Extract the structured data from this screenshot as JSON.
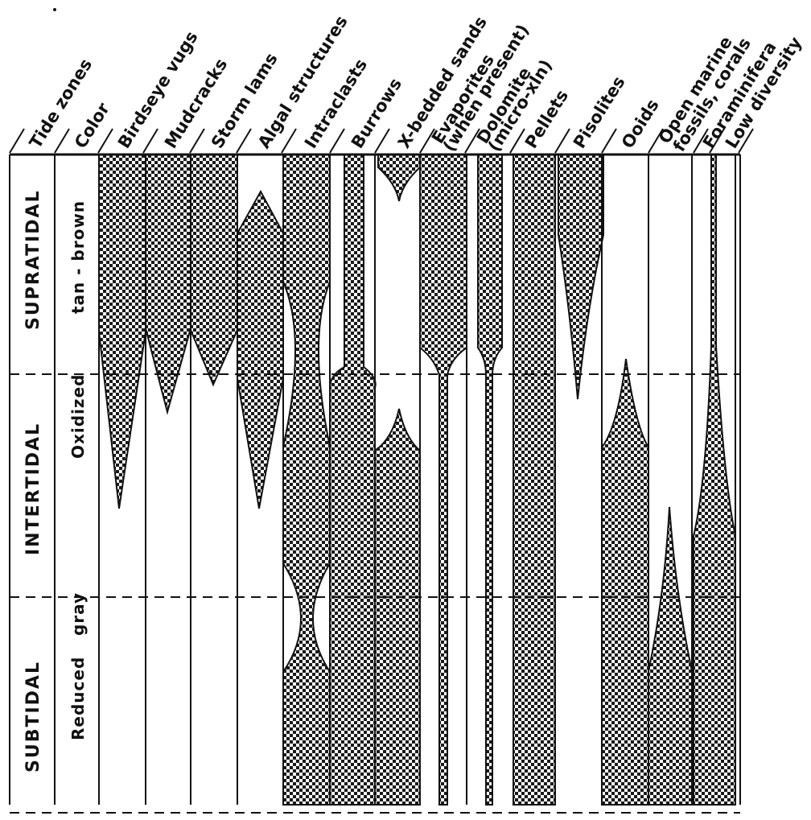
{
  "columns": [
    {
      "id": "tide_zones",
      "line1": "Tide zones"
    },
    {
      "id": "color",
      "line1": "Color"
    },
    {
      "id": "birdseye_vugs",
      "line1": "Birdseye vugs"
    },
    {
      "id": "mudcracks",
      "line1": "Mudcracks"
    },
    {
      "id": "storm_lams",
      "line1": "Storm lams"
    },
    {
      "id": "algal_structures",
      "line1": "Algal structures"
    },
    {
      "id": "intraclasts",
      "line1": "Intraclasts"
    },
    {
      "id": "burrows",
      "line1": "Burrows"
    },
    {
      "id": "x_bedded_sands",
      "line1": "X-bedded sands"
    },
    {
      "id": "evaporites",
      "line1": "Evaporites",
      "line2": "(when present)"
    },
    {
      "id": "dolomite",
      "line1": "Dolomite",
      "line2": "(micro-xln)"
    },
    {
      "id": "pellets",
      "line1": "Pellets"
    },
    {
      "id": "pisolites",
      "line1": "Pisolites"
    },
    {
      "id": "ooids",
      "line1": "Ooids"
    },
    {
      "id": "open_marine",
      "line1": "Open marine",
      "line2": "fossils, corals"
    },
    {
      "id": "foraminifera",
      "line1": "Foraminifera"
    },
    {
      "id": "low_diversity",
      "line1": "Low diversity"
    }
  ],
  "zones": {
    "supratidal": "SUPRATIDAL",
    "intertidal": "INTERTIDAL",
    "subtidal": "SUBTIDAL"
  },
  "colors": {
    "oxidized": "Oxidized",
    "tan_brown": "tan - brown",
    "reduced": "Reduced",
    "gray": "gray"
  },
  "style": {
    "fill_pattern": "dotted-stipple",
    "ink": "#111111",
    "paper": "#ffffff"
  }
}
